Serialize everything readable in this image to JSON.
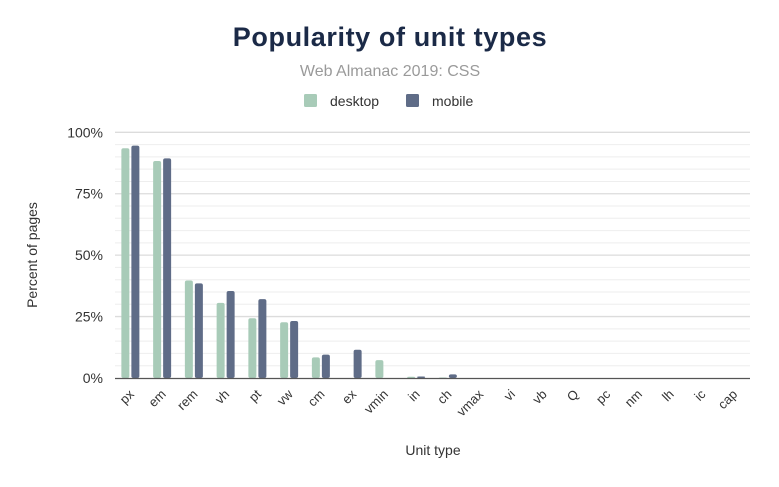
{
  "chart_data": {
    "type": "bar",
    "title": "Popularity of unit types",
    "subtitle": "Web Almanac 2019: CSS",
    "xlabel": "Unit type",
    "ylabel": "Percent of pages",
    "ylim": [
      0,
      100
    ],
    "yticks": [
      0,
      25,
      50,
      75,
      100
    ],
    "ytick_labels": [
      "0%",
      "25%",
      "50%",
      "75%",
      "100%"
    ],
    "grid": true,
    "legend_position": "top",
    "categories": [
      "px",
      "em",
      "rem",
      "vh",
      "pt",
      "vw",
      "cm",
      "ex",
      "vmin",
      "in",
      "ch",
      "vmax",
      "vi",
      "vb",
      "Q",
      "pc",
      "nm",
      "lh",
      "ic",
      "cap"
    ],
    "series": [
      {
        "name": "desktop",
        "color": "#a8cbb8",
        "values": [
          93.5,
          88.3,
          39.7,
          30.6,
          24.3,
          22.7,
          8.4,
          0,
          7.3,
          0.5,
          0.2,
          0,
          0,
          0,
          0,
          0,
          0,
          0,
          0,
          0
        ]
      },
      {
        "name": "mobile",
        "color": "#5f6c87",
        "values": [
          94.6,
          89.4,
          38.5,
          35.4,
          32.1,
          23.2,
          9.5,
          11.5,
          0,
          0.6,
          1.5,
          0,
          0,
          0,
          0,
          0,
          0,
          0,
          0,
          0
        ]
      }
    ],
    "colors": {
      "title": "#1b2a47",
      "subtitle": "#9a9a9a",
      "grid": "#e6e6e6",
      "axis": "#555555",
      "text": "#333333"
    }
  }
}
